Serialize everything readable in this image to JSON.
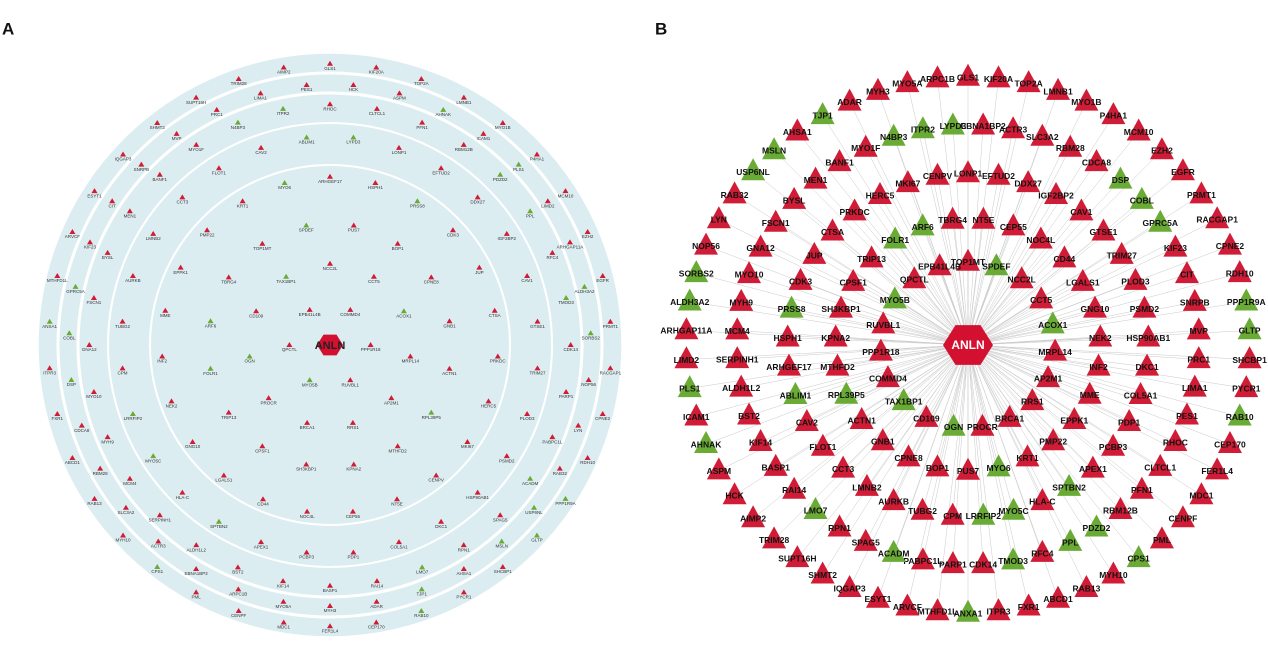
{
  "panels": [
    {
      "label": "A"
    },
    {
      "label": "B"
    }
  ],
  "hub": {
    "label": "ANLN",
    "color": "#d3102f"
  },
  "nodes": [
    {
      "label": "GLS1",
      "color": "#d01c36"
    },
    {
      "label": "KIF20A",
      "color": "#d01c36"
    },
    {
      "label": "TOP2A",
      "color": "#d01c36"
    },
    {
      "label": "LMNB1",
      "color": "#d01c36"
    },
    {
      "label": "MYO1B",
      "color": "#d01c36"
    },
    {
      "label": "P4HA1",
      "color": "#d01c36"
    },
    {
      "label": "MCM10",
      "color": "#d01c36"
    },
    {
      "label": "EZH2",
      "color": "#d01c36"
    },
    {
      "label": "EGFR",
      "color": "#d01c36"
    },
    {
      "label": "PRMT1",
      "color": "#d01c36"
    },
    {
      "label": "RACGAP1",
      "color": "#d01c36"
    },
    {
      "label": "CPNE2",
      "color": "#d01c36"
    },
    {
      "label": "RDH10",
      "color": "#d01c36"
    },
    {
      "label": "PPP1R9A",
      "color": "#6aab35"
    },
    {
      "label": "GLTP",
      "color": "#6aab35"
    },
    {
      "label": "SHCBP1",
      "color": "#d01c36"
    },
    {
      "label": "PYCR1",
      "color": "#d01c36"
    },
    {
      "label": "RAB10",
      "color": "#6aab35"
    },
    {
      "label": "CEP170",
      "color": "#d01c36"
    },
    {
      "label": "FER1L4",
      "color": "#d01c36"
    },
    {
      "label": "MDC1",
      "color": "#d01c36"
    },
    {
      "label": "CENPF",
      "color": "#d01c36"
    },
    {
      "label": "PML",
      "color": "#d01c36"
    },
    {
      "label": "CPS1",
      "color": "#6aab35"
    },
    {
      "label": "MYH10",
      "color": "#d01c36"
    },
    {
      "label": "RAB13",
      "color": "#d01c36"
    },
    {
      "label": "ABCD1",
      "color": "#d01c36"
    },
    {
      "label": "FXR1",
      "color": "#d01c36"
    },
    {
      "label": "ITPR3",
      "color": "#d01c36"
    },
    {
      "label": "ANXA1",
      "color": "#6aab35"
    },
    {
      "label": "MTHFD1L",
      "color": "#d01c36"
    },
    {
      "label": "ARVCF",
      "color": "#d01c36"
    },
    {
      "label": "ESYT1",
      "color": "#d01c36"
    },
    {
      "label": "IQGAP3",
      "color": "#d01c36"
    },
    {
      "label": "SHMT2",
      "color": "#d01c36"
    },
    {
      "label": "SUPT16H",
      "color": "#d01c36"
    },
    {
      "label": "TRIM28",
      "color": "#d01c36"
    },
    {
      "label": "AIMP2",
      "color": "#d01c36"
    },
    {
      "label": "HCK",
      "color": "#d01c36"
    },
    {
      "label": "ASPM",
      "color": "#d01c36"
    },
    {
      "label": "AHNAK",
      "color": "#6aab35"
    },
    {
      "label": "ICAM1",
      "color": "#d01c36"
    },
    {
      "label": "PLS1",
      "color": "#6aab35"
    },
    {
      "label": "LIMD2",
      "color": "#d01c36"
    },
    {
      "label": "ARHGAP11A",
      "color": "#d01c36"
    },
    {
      "label": "ALDH3A2",
      "color": "#6aab35"
    },
    {
      "label": "SORBS2",
      "color": "#6aab35"
    },
    {
      "label": "NOP56",
      "color": "#d01c36"
    },
    {
      "label": "LYN",
      "color": "#d01c36"
    },
    {
      "label": "RAB32",
      "color": "#d01c36"
    },
    {
      "label": "USP6NL",
      "color": "#6aab35"
    },
    {
      "label": "MSLN",
      "color": "#6aab35"
    },
    {
      "label": "AHSA1",
      "color": "#d01c36"
    },
    {
      "label": "TJP1",
      "color": "#6aab35"
    },
    {
      "label": "ADAR",
      "color": "#d01c36"
    },
    {
      "label": "MYH3",
      "color": "#d01c36"
    },
    {
      "label": "MYO5A",
      "color": "#d01c36"
    },
    {
      "label": "ARPC1B",
      "color": "#d01c36"
    },
    {
      "label": "EBNA1BP2",
      "color": "#d01c36"
    },
    {
      "label": "ACTR3",
      "color": "#d01c36"
    },
    {
      "label": "SLC3A2",
      "color": "#d01c36"
    },
    {
      "label": "RBM28",
      "color": "#d01c36"
    },
    {
      "label": "CDCA8",
      "color": "#d01c36"
    },
    {
      "label": "DSP",
      "color": "#6aab35"
    },
    {
      "label": "COBL",
      "color": "#6aab35"
    },
    {
      "label": "GPRC5A",
      "color": "#6aab35"
    },
    {
      "label": "KIF23",
      "color": "#d01c36"
    },
    {
      "label": "CIT",
      "color": "#d01c36"
    },
    {
      "label": "SNRPB",
      "color": "#d01c36"
    },
    {
      "label": "MVP",
      "color": "#d01c36"
    },
    {
      "label": "PRC1",
      "color": "#d01c36"
    },
    {
      "label": "LIMA1",
      "color": "#d01c36"
    },
    {
      "label": "PES1",
      "color": "#d01c36"
    },
    {
      "label": "RHOC",
      "color": "#d01c36"
    },
    {
      "label": "CLTCL1",
      "color": "#d01c36"
    },
    {
      "label": "PFN1",
      "color": "#d01c36"
    },
    {
      "label": "RBM12B",
      "color": "#d01c36"
    },
    {
      "label": "PDZD2",
      "color": "#6aab35"
    },
    {
      "label": "PPL",
      "color": "#6aab35"
    },
    {
      "label": "RFC4",
      "color": "#d01c36"
    },
    {
      "label": "TMOD3",
      "color": "#6aab35"
    },
    {
      "label": "CDK14",
      "color": "#d01c36"
    },
    {
      "label": "PARP1",
      "color": "#d01c36"
    },
    {
      "label": "PABPC1L",
      "color": "#d01c36"
    },
    {
      "label": "ACADM",
      "color": "#6aab35"
    },
    {
      "label": "SPAG5",
      "color": "#d01c36"
    },
    {
      "label": "RPN1",
      "color": "#d01c36"
    },
    {
      "label": "LMO7",
      "color": "#6aab35"
    },
    {
      "label": "RAI14",
      "color": "#d01c36"
    },
    {
      "label": "BASP1",
      "color": "#d01c36"
    },
    {
      "label": "KIF14",
      "color": "#d01c36"
    },
    {
      "label": "BST2",
      "color": "#d01c36"
    },
    {
      "label": "ALDH1L2",
      "color": "#d01c36"
    },
    {
      "label": "SERPINH1",
      "color": "#d01c36"
    },
    {
      "label": "MCM4",
      "color": "#d01c36"
    },
    {
      "label": "MYH9",
      "color": "#d01c36"
    },
    {
      "label": "MYO10",
      "color": "#d01c36"
    },
    {
      "label": "GNA12",
      "color": "#d01c36"
    },
    {
      "label": "FSCN1",
      "color": "#d01c36"
    },
    {
      "label": "BYSL",
      "color": "#d01c36"
    },
    {
      "label": "MEN1",
      "color": "#d01c36"
    },
    {
      "label": "BANF1",
      "color": "#d01c36"
    },
    {
      "label": "MYO1F",
      "color": "#d01c36"
    },
    {
      "label": "N4BP3",
      "color": "#6aab35"
    },
    {
      "label": "ITPR2",
      "color": "#6aab35"
    },
    {
      "label": "LYPD3",
      "color": "#6aab35"
    },
    {
      "label": "LONP1",
      "color": "#d01c36"
    },
    {
      "label": "EFTUD2",
      "color": "#d01c36"
    },
    {
      "label": "DDX27",
      "color": "#d01c36"
    },
    {
      "label": "IGF2BP2",
      "color": "#d01c36"
    },
    {
      "label": "CAV1",
      "color": "#d01c36"
    },
    {
      "label": "GTSE1",
      "color": "#d01c36"
    },
    {
      "label": "TRIM27",
      "color": "#d01c36"
    },
    {
      "label": "PLOD3",
      "color": "#d01c36"
    },
    {
      "label": "PSMD2",
      "color": "#d01c36"
    },
    {
      "label": "HSP90AB1",
      "color": "#d01c36"
    },
    {
      "label": "DKC1",
      "color": "#d01c36"
    },
    {
      "label": "COL5A1",
      "color": "#d01c36"
    },
    {
      "label": "PDP1",
      "color": "#d01c36"
    },
    {
      "label": "PCBP3",
      "color": "#d01c36"
    },
    {
      "label": "APEX1",
      "color": "#d01c36"
    },
    {
      "label": "SPTBN2",
      "color": "#6aab35"
    },
    {
      "label": "HLA-C",
      "color": "#d01c36"
    },
    {
      "label": "MYO5C",
      "color": "#6aab35"
    },
    {
      "label": "LRRFIP2",
      "color": "#6aab35"
    },
    {
      "label": "CPM",
      "color": "#d01c36"
    },
    {
      "label": "TUBG2",
      "color": "#d01c36"
    },
    {
      "label": "AURKB",
      "color": "#d01c36"
    },
    {
      "label": "LMNB2",
      "color": "#d01c36"
    },
    {
      "label": "CCT3",
      "color": "#d01c36"
    },
    {
      "label": "FLOT1",
      "color": "#d01c36"
    },
    {
      "label": "CAV2",
      "color": "#d01c36"
    },
    {
      "label": "ABLIM1",
      "color": "#6aab35"
    },
    {
      "label": "ARHGEF17",
      "color": "#d01c36"
    },
    {
      "label": "HSPH1",
      "color": "#d01c36"
    },
    {
      "label": "PRSS8",
      "color": "#6aab35"
    },
    {
      "label": "CDK3",
      "color": "#d01c36"
    },
    {
      "label": "JUP",
      "color": "#d01c36"
    },
    {
      "label": "CTSA",
      "color": "#d01c36"
    },
    {
      "label": "PRKDC",
      "color": "#d01c36"
    },
    {
      "label": "HERC5",
      "color": "#d01c36"
    },
    {
      "label": "MKI67",
      "color": "#d01c36"
    },
    {
      "label": "CENPV",
      "color": "#d01c36"
    },
    {
      "label": "NT5E",
      "color": "#d01c36"
    },
    {
      "label": "CEP55",
      "color": "#d01c36"
    },
    {
      "label": "NOC4L",
      "color": "#d01c36"
    },
    {
      "label": "CD44",
      "color": "#d01c36"
    },
    {
      "label": "LGALS1",
      "color": "#d01c36"
    },
    {
      "label": "GNG10",
      "color": "#d01c36"
    },
    {
      "label": "NEK2",
      "color": "#d01c36"
    },
    {
      "label": "INF2",
      "color": "#d01c36"
    },
    {
      "label": "MME",
      "color": "#d01c36"
    },
    {
      "label": "EPPK1",
      "color": "#d01c36"
    },
    {
      "label": "PMP22",
      "color": "#d01c36"
    },
    {
      "label": "KRT1",
      "color": "#d01c36"
    },
    {
      "label": "MYO6",
      "color": "#6aab35"
    },
    {
      "label": "PUS7",
      "color": "#d01c36"
    },
    {
      "label": "BOP1",
      "color": "#d01c36"
    },
    {
      "label": "CPNE8",
      "color": "#d01c36"
    },
    {
      "label": "GNB1",
      "color": "#d01c36"
    },
    {
      "label": "ACTN1",
      "color": "#d01c36"
    },
    {
      "label": "RPL39P5",
      "color": "#6aab35"
    },
    {
      "label": "MTHFD2",
      "color": "#d01c36"
    },
    {
      "label": "KPNA2",
      "color": "#d01c36"
    },
    {
      "label": "SH3KBP1",
      "color": "#d01c36"
    },
    {
      "label": "CPSF1",
      "color": "#d01c36"
    },
    {
      "label": "TRIP13",
      "color": "#d01c36"
    },
    {
      "label": "FOLR1",
      "color": "#6aab35"
    },
    {
      "label": "ARF6",
      "color": "#6aab35"
    },
    {
      "label": "TBRG4",
      "color": "#d01c36"
    },
    {
      "label": "TOP1MT",
      "color": "#d01c36"
    },
    {
      "label": "SPDEF",
      "color": "#6aab35"
    },
    {
      "label": "NCC2L",
      "color": "#d01c36"
    },
    {
      "label": "CCT5",
      "color": "#d01c36"
    },
    {
      "label": "ACOX1",
      "color": "#6aab35"
    },
    {
      "label": "MRPL14",
      "color": "#d01c36"
    },
    {
      "label": "AP2M1",
      "color": "#d01c36"
    },
    {
      "label": "RRS1",
      "color": "#d01c36"
    },
    {
      "label": "BRCA1",
      "color": "#d01c36"
    },
    {
      "label": "PROCR",
      "color": "#d01c36"
    },
    {
      "label": "OGN",
      "color": "#6aab35"
    },
    {
      "label": "CD109",
      "color": "#d01c36"
    },
    {
      "label": "TAX1BP1",
      "color": "#6aab35"
    },
    {
      "label": "COMMD4",
      "color": "#d01c36"
    },
    {
      "label": "PPP1R18",
      "color": "#d01c36"
    },
    {
      "label": "RUVBL1",
      "color": "#d01c36"
    },
    {
      "label": "MYO5B",
      "color": "#6aab35"
    },
    {
      "label": "QPCTL",
      "color": "#d01c36"
    },
    {
      "label": "EPB41L4B",
      "color": "#d01c36"
    }
  ]
}
